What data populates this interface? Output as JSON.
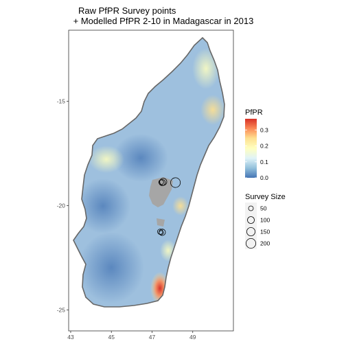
{
  "title": {
    "line1": "Raw PfPR Survey points",
    "line2": " + Modelled PfPR 2-10 in Madagascar in 2013"
  },
  "axes": {
    "x_ticks": [
      "43",
      "45",
      "47",
      "49"
    ],
    "y_ticks": [
      "-15",
      "-20",
      "-25"
    ],
    "xlim": [
      42.9,
      51.0
    ],
    "ylim": [
      -26.0,
      -11.6
    ]
  },
  "legend_pfpr": {
    "title": "PfPR",
    "ticks": [
      "0.0",
      "0.1",
      "0.2",
      "0.3"
    ],
    "range": [
      0.0,
      0.37
    ],
    "colors": [
      "#4575b4",
      "#91bfdb",
      "#e0f3f8",
      "#ffffbf",
      "#fee090",
      "#fc8d59",
      "#d73027"
    ]
  },
  "legend_size": {
    "title": "Survey Size",
    "entries": [
      {
        "label": "50",
        "value": 50
      },
      {
        "label": "100",
        "value": 100
      },
      {
        "label": "150",
        "value": 150
      },
      {
        "label": "200",
        "value": 200
      }
    ]
  },
  "colors": {
    "background": "#ffffff",
    "panel_border": "#333333",
    "coast": "#666666",
    "no_data": "#a6a6a6",
    "point_stroke": "#000000",
    "legend_key_bg": "#f2f2f2"
  },
  "survey_points": [
    {
      "lon": 47.45,
      "lat": -18.88,
      "size": 50
    },
    {
      "lon": 47.5,
      "lat": -18.9,
      "size": 80
    },
    {
      "lon": 47.55,
      "lat": -18.86,
      "size": 110
    },
    {
      "lon": 48.15,
      "lat": -18.9,
      "size": 200
    },
    {
      "lon": 47.4,
      "lat": -21.25,
      "size": 60
    },
    {
      "lon": 47.5,
      "lat": -21.28,
      "size": 90
    },
    {
      "lon": 47.45,
      "lat": -21.3,
      "size": 40
    }
  ]
}
